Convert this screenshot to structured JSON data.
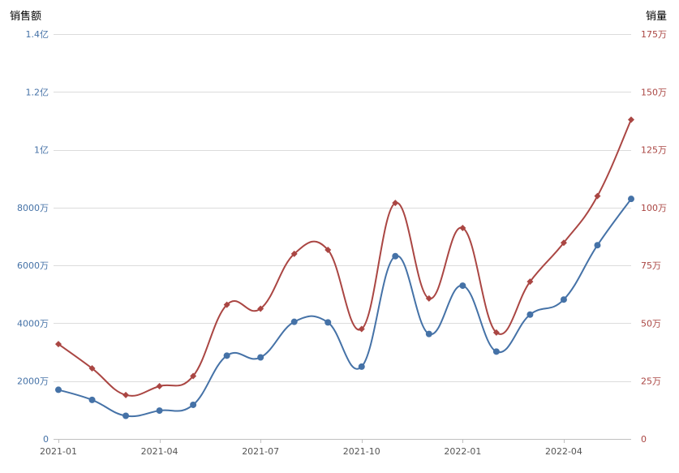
{
  "chart_data": {
    "type": "line",
    "x": [
      "2021-01",
      "2021-02",
      "2021-03",
      "2021-04",
      "2021-05",
      "2021-06",
      "2021-07",
      "2021-08",
      "2021-09",
      "2021-10",
      "2021-11",
      "2021-12",
      "2022-01",
      "2022-02",
      "2022-03",
      "2022-04",
      "2022-05",
      "2022-06"
    ],
    "x_tick_labels": [
      "2021-01",
      "2021-04",
      "2021-07",
      "2021-10",
      "2022-01",
      "2022-04"
    ],
    "y_left": {
      "title": "销售额",
      "range": [
        0,
        140000000
      ],
      "tick_values": [
        0,
        20000000,
        40000000,
        60000000,
        80000000,
        100000000,
        120000000,
        140000000
      ],
      "tick_labels": [
        "0",
        "2000万",
        "4000万",
        "6000万",
        "8000万",
        "1亿",
        "1.2亿",
        "1.4亿"
      ],
      "color": "#4572a7"
    },
    "y_right": {
      "title": "销量",
      "range": [
        0,
        1750000
      ],
      "tick_values": [
        0,
        250000,
        500000,
        750000,
        1000000,
        1250000,
        1500000,
        1750000
      ],
      "tick_labels": [
        "0",
        "25万",
        "50万",
        "75万",
        "100万",
        "125万",
        "150万",
        "175万"
      ],
      "color": "#aa4643"
    },
    "series": [
      {
        "axis": "left",
        "marker": "circle",
        "color": "#4572a7",
        "values": [
          17000000,
          13500000,
          8000000,
          9800000,
          11800000,
          28800000,
          28200000,
          40500000,
          40300000,
          25000000,
          63200000,
          36300000,
          53000000,
          30200000,
          43000000,
          48200000,
          67000000,
          83000000
        ]
      },
      {
        "axis": "right",
        "marker": "diamond",
        "color": "#aa4643",
        "values": [
          410000,
          305000,
          190000,
          228000,
          272000,
          580000,
          563000,
          800000,
          817000,
          475000,
          1020000,
          607000,
          912000,
          460000,
          680000,
          848000,
          1050000,
          1380000
        ]
      }
    ],
    "grid": true,
    "legend": "none"
  }
}
